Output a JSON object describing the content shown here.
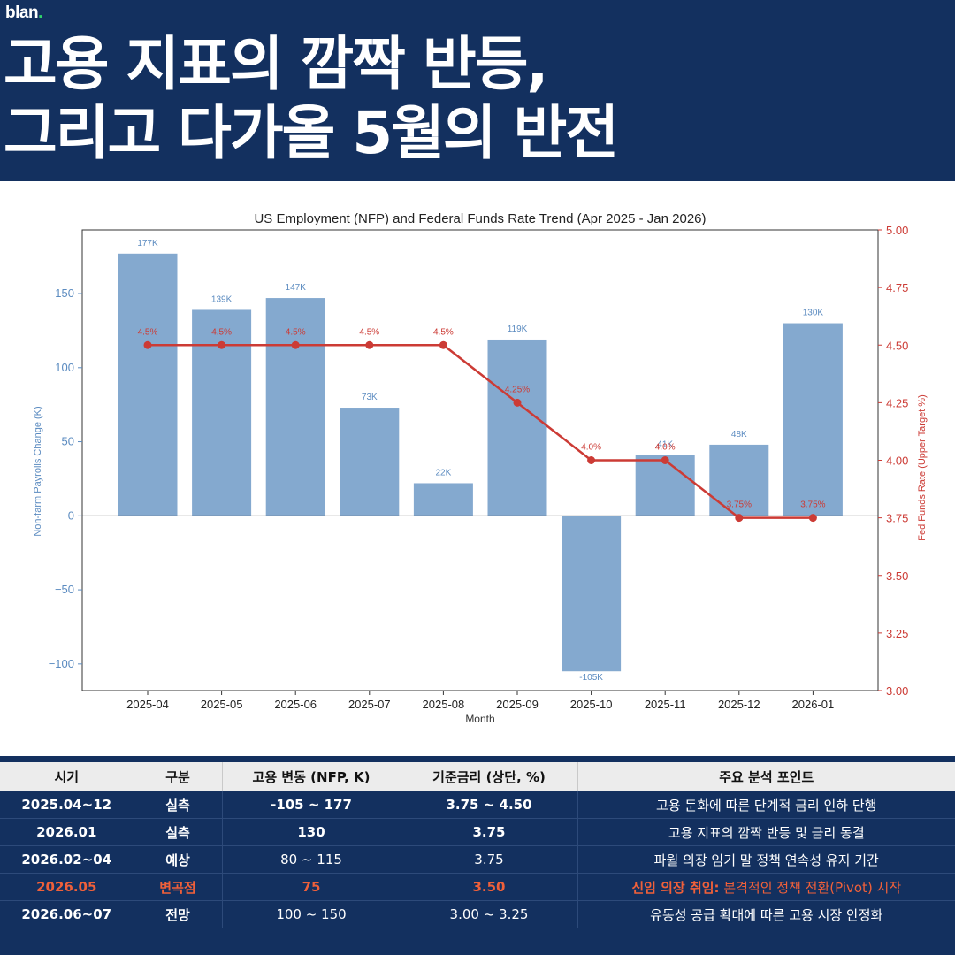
{
  "brand": {
    "name": "blan",
    "dot": "."
  },
  "title": {
    "line1": "고용 지표의 깜짝 반등,",
    "line2": "그리고 다가올 5월의 반전"
  },
  "chart_data": {
    "type": "bar+line",
    "title": "US Employment (NFP) and Federal Funds Rate Trend (Apr 2025 - Jan 2026)",
    "xlabel": "Month",
    "ylabel_left": "Non-farm Payrolls Change (K)",
    "ylabel_right": "Fed Funds Rate (Upper Target %)",
    "categories": [
      "2025-04",
      "2025-05",
      "2025-06",
      "2025-07",
      "2025-08",
      "2025-09",
      "2025-10",
      "2025-11",
      "2025-12",
      "2026-01"
    ],
    "series": [
      {
        "axis": "left",
        "type": "bar",
        "color": "#84a9cf",
        "values": [
          177,
          139,
          147,
          73,
          22,
          119,
          -105,
          41,
          48,
          130
        ],
        "labels": [
          "177K",
          "139K",
          "147K",
          "73K",
          "22K",
          "119K",
          "-105K",
          "41K",
          "48K",
          "130K"
        ]
      },
      {
        "axis": "right",
        "type": "line",
        "color": "#cc3b35",
        "values": [
          4.5,
          4.5,
          4.5,
          4.5,
          4.5,
          4.25,
          4.0,
          4.0,
          3.75,
          3.75
        ],
        "labels": [
          "4.5%",
          "4.5%",
          "4.5%",
          "4.5%",
          "4.5%",
          "4.25%",
          "4.0%",
          "4.0%",
          "3.75%",
          "3.75%"
        ]
      }
    ],
    "ylim_left": [
      -118,
      193
    ],
    "ylim_right": [
      3.0,
      5.0
    ],
    "yticks_left": [
      -100,
      -50,
      0,
      50,
      100,
      150
    ],
    "yticks_left_labels": [
      "−100",
      "−50",
      "0",
      "50",
      "100",
      "150"
    ],
    "yticks_right": [
      3.0,
      3.25,
      3.5,
      3.75,
      4.0,
      4.25,
      4.5,
      4.75,
      5.0
    ],
    "yticks_right_labels": [
      "3.00",
      "3.25",
      "3.50",
      "3.75",
      "4.00",
      "4.25",
      "4.50",
      "4.75",
      "5.00"
    ],
    "grid": false,
    "left_axis_color": "#5b8bc0",
    "right_axis_color": "#cc3b35"
  },
  "table": {
    "headers": [
      "시기",
      "구분",
      "고용 변동 (NFP, K)",
      "기준금리 (상단, %)",
      "주요 분석 포인트"
    ],
    "rows": [
      {
        "period": "2025.04~12",
        "type": "실측",
        "nfp": "-105 ~ 177",
        "rate": "3.75 ~ 4.50",
        "point_prefix": "",
        "point": "고용 둔화에 따른 단계적 금리 인하 단행"
      },
      {
        "period": "2026.01",
        "type": "실측",
        "nfp": "130",
        "rate": "3.75",
        "point_prefix": "",
        "point": "고용 지표의 깜짝 반등 및 금리 동결"
      },
      {
        "period": "2026.02~04",
        "type": "예상",
        "nfp": "80 ~ 115",
        "rate": "3.75",
        "point_prefix": "",
        "point": "파월 의장 임기 말 정책 연속성 유지 기간"
      },
      {
        "period": "2026.05",
        "type": "변곡점",
        "nfp": "75",
        "rate": "3.50",
        "point_prefix": "신임 의장 취임:",
        "point": " 본격적인 정책 전환(Pivot) 시작"
      },
      {
        "period": "2026.06~07",
        "type": "전망",
        "nfp": "100 ~ 150",
        "rate": "3.00 ~ 3.25",
        "point_prefix": "",
        "point": "유동성 공급 확대에 따른 고용 시장 안정화"
      }
    ]
  }
}
